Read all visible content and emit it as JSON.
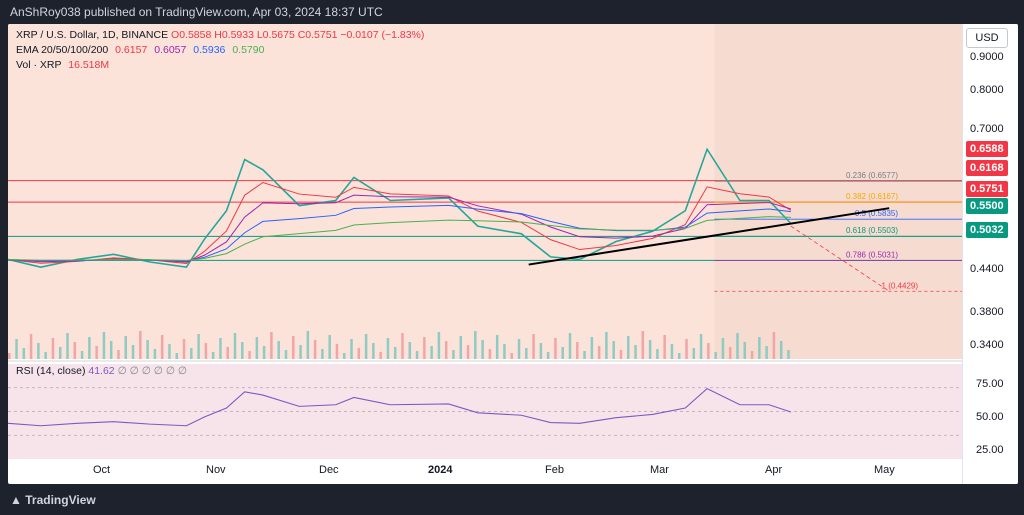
{
  "header": {
    "text": "AnShRoy038 published on TradingView.com, Apr 03, 2024 18:37 UTC"
  },
  "legend": {
    "symbol": "XRP / U.S. Dollar, 1D, BINANCE",
    "ohlc": "O0.5858 H0.5933 L0.5675 C0.5751 −0.0107 (−1.83%)",
    "ema_label": "EMA 20/50/100/200",
    "ema_values": [
      "0.6157",
      "0.6057",
      "0.5936",
      "0.5790"
    ],
    "vol_label": "Vol · XRP",
    "vol_value": "16.518M"
  },
  "rsi_legend": {
    "label": "RSI (14, close)",
    "value": "41.62",
    "extra": "∅ ∅ ∅ ∅ ∅ ∅"
  },
  "currency": "USD",
  "price_ticks": [
    "0.9000",
    "0.8000",
    "0.7000",
    "0.4400",
    "0.3800",
    "0.3400"
  ],
  "price_tags": [
    {
      "label": "0.6588",
      "color": "#f23645"
    },
    {
      "label": "0.6168",
      "color": "#f23645"
    },
    {
      "label": "0.5751",
      "color": "#f23645"
    },
    {
      "label": "0.5500",
      "color": "#089981"
    },
    {
      "label": "0.5032",
      "color": "#089981"
    }
  ],
  "rsi_ticks": [
    "75.00",
    "50.00",
    "25.00"
  ],
  "time_labels": [
    "Oct",
    "Nov",
    "Dec",
    "2024",
    "Feb",
    "Mar",
    "Apr",
    "May"
  ],
  "fib_labels": [
    "0.236 (0.6577)",
    "0.382 (0.6167)",
    "0.5 (0.5835)",
    "0.618 (0.5503)",
    "0.786 (0.5031)",
    "1 (0.4429)"
  ],
  "footer": {
    "brand": "TradingView"
  },
  "chart_data": {
    "type": "candlestick",
    "title": "XRP / U.S. Dollar, 1D, BINANCE",
    "ylim": [
      0.32,
      0.95
    ],
    "x_range": [
      "2023-09-01",
      "2024-05-20"
    ],
    "close_path": [
      [
        "2023-09-01",
        0.505
      ],
      [
        "2023-09-10",
        0.49
      ],
      [
        "2023-09-20",
        0.505
      ],
      [
        "2023-09-30",
        0.515
      ],
      [
        "2023-10-10",
        0.5
      ],
      [
        "2023-10-20",
        0.49
      ],
      [
        "2023-10-25",
        0.545
      ],
      [
        "2023-10-31",
        0.6
      ],
      [
        "2023-11-05",
        0.7
      ],
      [
        "2023-11-10",
        0.68
      ],
      [
        "2023-11-20",
        0.61
      ],
      [
        "2023-11-30",
        0.62
      ],
      [
        "2023-12-05",
        0.665
      ],
      [
        "2023-12-15",
        0.62
      ],
      [
        "2023-12-31",
        0.625
      ],
      [
        "2024-01-08",
        0.57
      ],
      [
        "2024-01-20",
        0.555
      ],
      [
        "2024-01-28",
        0.51
      ],
      [
        "2024-02-05",
        0.505
      ],
      [
        "2024-02-15",
        0.54
      ],
      [
        "2024-02-25",
        0.56
      ],
      [
        "2024-03-05",
        0.6
      ],
      [
        "2024-03-11",
        0.72
      ],
      [
        "2024-03-20",
        0.62
      ],
      [
        "2024-03-28",
        0.62
      ],
      [
        "2024-04-03",
        0.5751
      ]
    ],
    "horizontal_levels": [
      0.6588,
      0.6168,
      0.55,
      0.5032
    ],
    "fibonacci": [
      {
        "ratio": "0.236",
        "price": 0.6577
      },
      {
        "ratio": "0.382",
        "price": 0.6167
      },
      {
        "ratio": "0.5",
        "price": 0.5835
      },
      {
        "ratio": "0.618",
        "price": 0.5503
      },
      {
        "ratio": "0.786",
        "price": 0.5031
      },
      {
        "ratio": "1",
        "price": 0.4429
      }
    ],
    "ema": {
      "ema20": 0.6157,
      "ema50": 0.6057,
      "ema100": 0.5936,
      "ema200": 0.579
    },
    "rsi": {
      "value": 41.62,
      "levels": [
        75,
        50,
        25
      ]
    }
  }
}
